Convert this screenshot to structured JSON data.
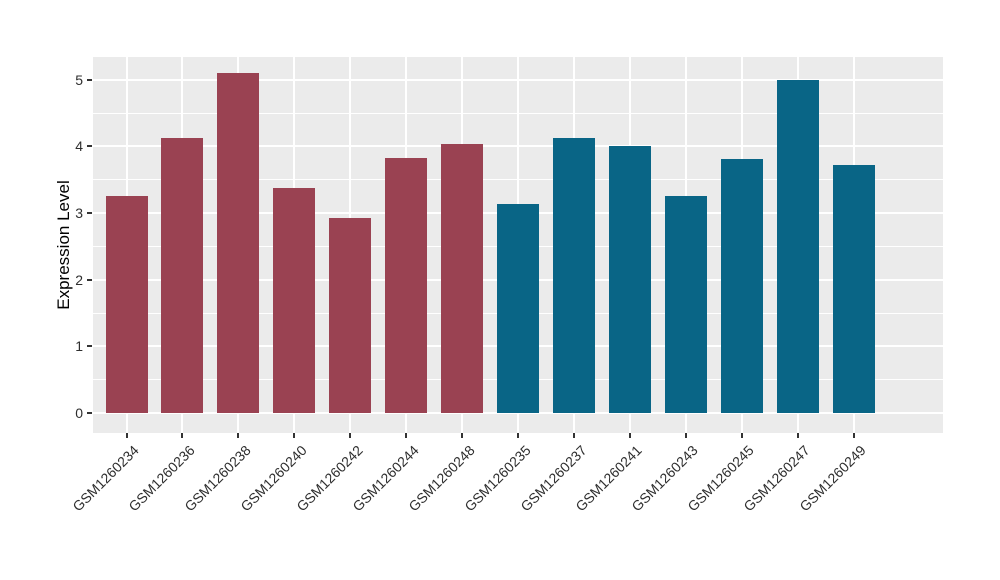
{
  "figure": {
    "background": "#FFFFFF",
    "panel_background": "#EBEBEB",
    "grid_color": "#FFFFFF",
    "tick_color": "#333333",
    "label_color": "#2E2E2E"
  },
  "chart_data": {
    "type": "bar",
    "title": "",
    "xlabel": "",
    "ylabel": "Expression Level",
    "legend": "none",
    "grid": "on",
    "ylim": [
      -0.3,
      5.37
    ],
    "yticks": [
      0,
      1,
      2,
      3,
      4,
      5
    ],
    "yticks_minor": [
      0.5,
      1.5,
      2.5,
      3.5,
      4.5
    ],
    "categories": [
      "GSM1260234",
      "GSM1260236",
      "GSM1260238",
      "GSM1260240",
      "GSM1260242",
      "GSM1260244",
      "GSM1260248",
      "GSM1260235",
      "GSM1260237",
      "GSM1260241",
      "GSM1260243",
      "GSM1260245",
      "GSM1260247",
      "GSM1260249"
    ],
    "values": [
      3.26,
      4.12,
      5.1,
      3.37,
      2.92,
      3.83,
      4.03,
      3.13,
      4.12,
      4.01,
      3.25,
      3.81,
      5.0,
      3.72
    ],
    "bar_colors": [
      "#9A4252",
      "#9A4252",
      "#9A4252",
      "#9A4252",
      "#9A4252",
      "#9A4252",
      "#9A4252",
      "#096586",
      "#096586",
      "#096586",
      "#096586",
      "#096586",
      "#096586",
      "#096586"
    ],
    "group_colors": {
      "left_group": "#9A4252",
      "right_group": "#096586"
    }
  }
}
